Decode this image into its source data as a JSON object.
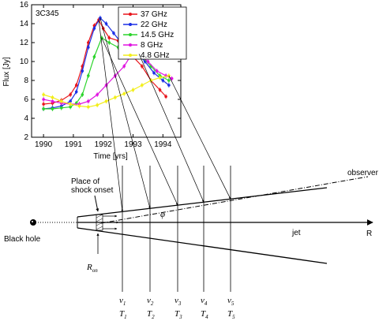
{
  "chart_data": {
    "type": "line",
    "title": "3C345",
    "xlabel": "Time [yrs]",
    "ylabel": "Flux [Jy]",
    "xlim": [
      1989.6,
      1994.6
    ],
    "ylim": [
      2,
      16
    ],
    "xticks": [
      "1990",
      "1991",
      "1992",
      "1993",
      "1994"
    ],
    "yticks": [
      "2",
      "4",
      "6",
      "8",
      "10",
      "12",
      "14",
      "16"
    ],
    "legend_position": "top-right",
    "series": [
      {
        "name": "37 GHz",
        "color": "#e8141b",
        "points": [
          [
            1990.0,
            5.5
          ],
          [
            1990.3,
            5.6
          ],
          [
            1990.6,
            5.9
          ],
          [
            1990.9,
            6.5
          ],
          [
            1991.1,
            7.5
          ],
          [
            1991.3,
            9.5
          ],
          [
            1991.5,
            12.0
          ],
          [
            1991.7,
            13.8
          ],
          [
            1991.85,
            14.4
          ],
          [
            1992.0,
            13.5
          ],
          [
            1992.2,
            12.5
          ],
          [
            1992.5,
            12.2
          ],
          [
            1992.8,
            11.5
          ],
          [
            1993.0,
            10.5
          ],
          [
            1993.3,
            9.5
          ],
          [
            1993.6,
            8.0
          ],
          [
            1993.9,
            7.0
          ],
          [
            1994.1,
            6.3
          ]
        ]
      },
      {
        "name": "22 GHz",
        "color": "#1a2ee6",
        "points": [
          [
            1990.0,
            5.0
          ],
          [
            1990.3,
            5.1
          ],
          [
            1990.6,
            5.3
          ],
          [
            1990.9,
            5.8
          ],
          [
            1991.1,
            6.8
          ],
          [
            1991.3,
            9.0
          ],
          [
            1991.5,
            11.5
          ],
          [
            1991.7,
            13.5
          ],
          [
            1991.9,
            14.6
          ],
          [
            1992.1,
            14.0
          ],
          [
            1992.35,
            13.0
          ],
          [
            1992.6,
            12.0
          ],
          [
            1992.9,
            11.5
          ],
          [
            1993.1,
            11.0
          ],
          [
            1993.4,
            10.0
          ],
          [
            1993.7,
            8.8
          ],
          [
            1994.0,
            8.0
          ],
          [
            1994.2,
            7.5
          ]
        ]
      },
      {
        "name": "14.5 GHz",
        "color": "#2bd42b",
        "points": [
          [
            1990.0,
            5.0
          ],
          [
            1990.3,
            5.0
          ],
          [
            1990.6,
            5.1
          ],
          [
            1990.9,
            5.2
          ],
          [
            1991.1,
            5.6
          ],
          [
            1991.3,
            6.5
          ],
          [
            1991.5,
            8.5
          ],
          [
            1991.7,
            10.5
          ],
          [
            1991.95,
            12.5
          ],
          [
            1992.2,
            12.0
          ],
          [
            1992.5,
            11.5
          ],
          [
            1992.8,
            12.0
          ],
          [
            1993.0,
            11.5
          ],
          [
            1993.3,
            10.5
          ],
          [
            1993.6,
            9.5
          ],
          [
            1993.9,
            8.5
          ],
          [
            1994.2,
            8.0
          ]
        ]
      },
      {
        "name": "8 GHz",
        "color": "#e014e0",
        "points": [
          [
            1990.0,
            6.0
          ],
          [
            1990.3,
            5.8
          ],
          [
            1990.6,
            5.6
          ],
          [
            1990.9,
            5.5
          ],
          [
            1991.2,
            5.5
          ],
          [
            1991.5,
            5.8
          ],
          [
            1991.8,
            6.5
          ],
          [
            1992.1,
            7.5
          ],
          [
            1992.4,
            8.5
          ],
          [
            1992.7,
            9.5
          ],
          [
            1992.9,
            10.5
          ],
          [
            1993.2,
            10.8
          ],
          [
            1993.5,
            10.0
          ],
          [
            1993.8,
            9.0
          ],
          [
            1994.1,
            8.5
          ],
          [
            1994.3,
            8.2
          ]
        ]
      },
      {
        "name": "4.8 GHz",
        "color": "#f2ee18",
        "points": [
          [
            1990.0,
            6.5
          ],
          [
            1990.3,
            6.2
          ],
          [
            1990.6,
            5.8
          ],
          [
            1990.9,
            5.5
          ],
          [
            1991.2,
            5.3
          ],
          [
            1991.5,
            5.2
          ],
          [
            1991.8,
            5.4
          ],
          [
            1992.1,
            5.8
          ],
          [
            1992.4,
            6.2
          ],
          [
            1992.7,
            6.6
          ],
          [
            1993.0,
            7.0
          ],
          [
            1993.3,
            7.5
          ],
          [
            1993.6,
            8.0
          ],
          [
            1993.9,
            8.3
          ],
          [
            1994.2,
            8.5
          ]
        ]
      }
    ]
  },
  "diagram": {
    "black_hole_label": "Black hole",
    "shock_onset_label": [
      "Place of",
      "shock onset"
    ],
    "observer_label": "observer",
    "jet_label": "jet",
    "axis_label": "R",
    "angle_label": "φ",
    "radius_label": "R",
    "radius_sub": "on",
    "nu_labels": [
      {
        "main": "ν",
        "sub": "1"
      },
      {
        "main": "ν",
        "sub": "2"
      },
      {
        "main": "ν",
        "sub": "3"
      },
      {
        "main": "ν",
        "sub": "4"
      },
      {
        "main": "ν",
        "sub": "5"
      }
    ],
    "t_labels": [
      {
        "main": "T",
        "sub": "1"
      },
      {
        "main": "T",
        "sub": "2"
      },
      {
        "main": "T",
        "sub": "3"
      },
      {
        "main": "T",
        "sub": "4"
      },
      {
        "main": "T",
        "sub": "5"
      }
    ]
  }
}
